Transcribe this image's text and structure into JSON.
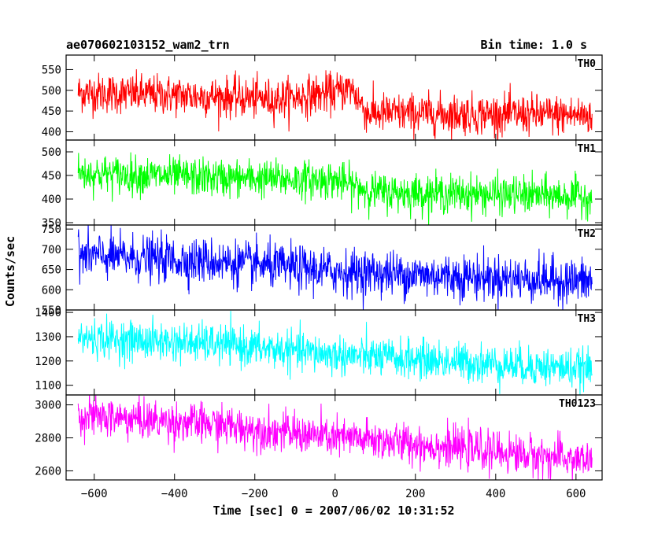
{
  "chart_data": {
    "type": "line",
    "title": "ae070602103152_wam2_trn",
    "bin_time": "Bin time: 1.0 s",
    "xlabel": "Time [sec] 0 = 2007/06/02 10:31:52",
    "ylabel": "Counts/sec",
    "xlim": [
      -670,
      665
    ],
    "x_ticks": [
      -600,
      -400,
      -200,
      0,
      200,
      400,
      600
    ],
    "x_range": [
      -640,
      640
    ],
    "bin": 1.0,
    "panels": [
      {
        "name": "TH0",
        "color": "#ff0000",
        "ylim": [
          380,
          585
        ],
        "y_ticks": [
          400,
          450,
          500,
          550
        ],
        "trend_x": [
          -640,
          -300,
          -150,
          0,
          40,
          80,
          640
        ],
        "trend_y": [
          495,
          485,
          478,
          495,
          505,
          445,
          440
        ],
        "noise": 24
      },
      {
        "name": "TH1",
        "color": "#00ff00",
        "ylim": [
          345,
          525
        ],
        "y_ticks": [
          350,
          400,
          450,
          500
        ],
        "trend_x": [
          -640,
          -300,
          0,
          100,
          640
        ],
        "trend_y": [
          455,
          445,
          440,
          415,
          405
        ],
        "noise": 20
      },
      {
        "name": "TH2",
        "color": "#0000ff",
        "ylim": [
          550,
          760
        ],
        "y_ticks": [
          550,
          600,
          650,
          700,
          750
        ],
        "trend_x": [
          -640,
          -300,
          0,
          640
        ],
        "trend_y": [
          685,
          670,
          645,
          620
        ],
        "noise": 28
      },
      {
        "name": "TH3",
        "color": "#00ffff",
        "ylim": [
          1060,
          1410
        ],
        "y_ticks": [
          1100,
          1200,
          1300,
          1400
        ],
        "trend_x": [
          -640,
          -300,
          0,
          640
        ],
        "trend_y": [
          1295,
          1270,
          1225,
          1165
        ],
        "noise": 40
      },
      {
        "name": "TH0123",
        "color": "#ff00ff",
        "ylim": [
          2545,
          3060
        ],
        "y_ticks": [
          2600,
          2800,
          3000
        ],
        "trend_x": [
          -640,
          -300,
          0,
          80,
          640
        ],
        "trend_y": [
          2935,
          2880,
          2800,
          2790,
          2660
        ],
        "noise": 60
      }
    ]
  }
}
